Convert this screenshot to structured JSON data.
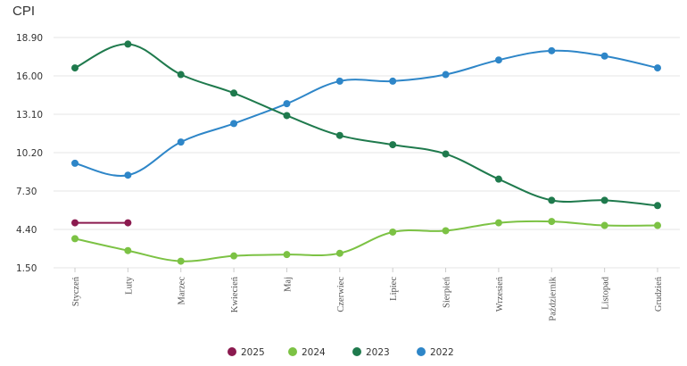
{
  "chart_data": {
    "type": "line",
    "title": "CPI",
    "xlabel": "",
    "ylabel": "",
    "categories": [
      "Styczeń",
      "Luty",
      "Marzec",
      "Kwiecień",
      "Maj",
      "Czerwiec",
      "Lipiec",
      "Sierpień",
      "Wrzesień",
      "Październik",
      "Listopad",
      "Grudzień"
    ],
    "ylim": [
      1.5,
      18.9
    ],
    "yticks": [
      "18.90",
      "16.00",
      "13.10",
      "10.20",
      "7.30",
      "4.40",
      "1.50"
    ],
    "grid": true,
    "legend_position": "bottom-center",
    "series": [
      {
        "name": "2025",
        "color": "#8b1a4f",
        "values": [
          4.9,
          4.9,
          null,
          null,
          null,
          null,
          null,
          null,
          null,
          null,
          null,
          null
        ]
      },
      {
        "name": "2024",
        "color": "#7cc244",
        "values": [
          3.7,
          2.8,
          2.0,
          2.4,
          2.5,
          2.6,
          4.2,
          4.3,
          4.9,
          5.0,
          4.7,
          4.7
        ]
      },
      {
        "name": "2023",
        "color": "#1f7a4d",
        "values": [
          16.6,
          18.4,
          16.1,
          14.7,
          13.0,
          11.5,
          10.8,
          10.1,
          8.2,
          6.6,
          6.6,
          6.2
        ]
      },
      {
        "name": "2022",
        "color": "#2e86c8",
        "values": [
          9.4,
          8.5,
          11.0,
          12.4,
          13.9,
          15.6,
          15.6,
          16.1,
          17.2,
          17.9,
          17.5,
          16.6
        ]
      }
    ]
  }
}
